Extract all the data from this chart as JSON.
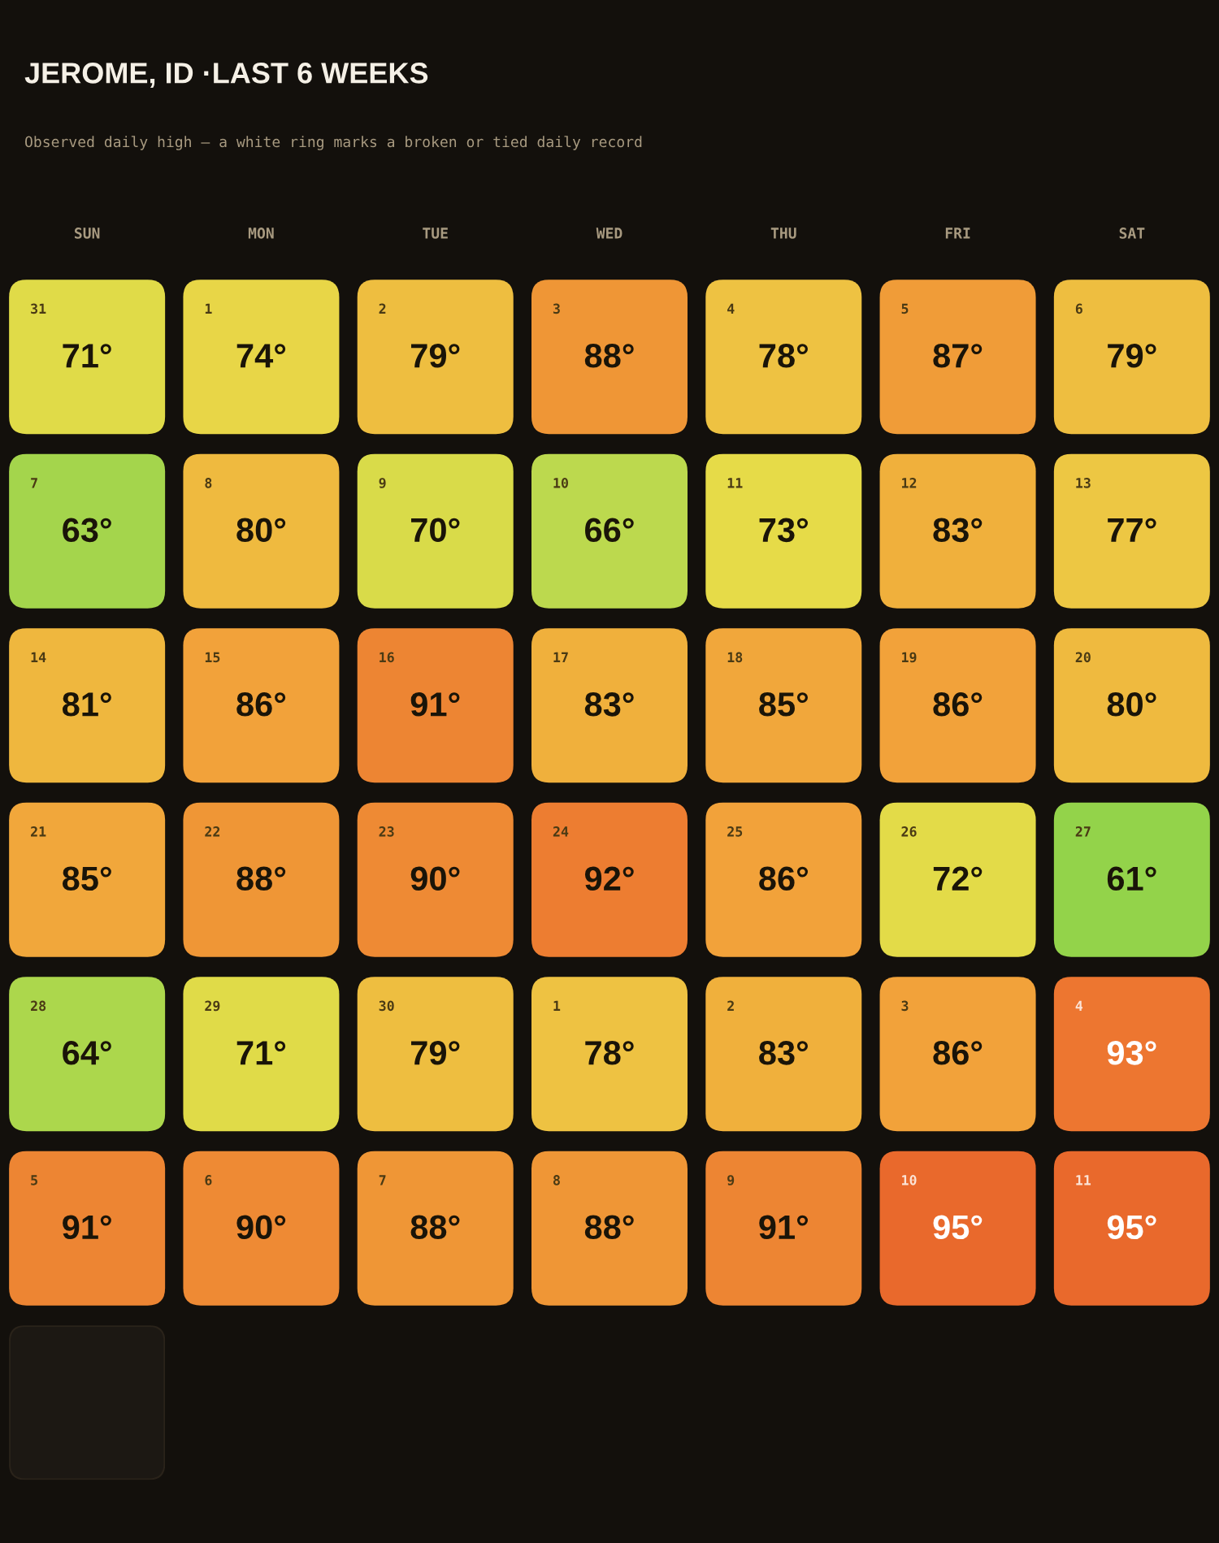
{
  "chart_data": {
    "type": "heatmap",
    "title": "JEROME, ID ·LAST 6 WEEKS",
    "subtitle": "Observed daily high — a white ring marks a broken or tied daily record",
    "categories": [
      "SUN",
      "MON",
      "TUE",
      "WED",
      "THU",
      "FRI",
      "SAT"
    ],
    "y_categories": [
      null,
      null,
      null,
      null,
      null,
      null
    ],
    "cells": [
      [
        71,
        74,
        79,
        88,
        78,
        87,
        79
      ],
      [
        63,
        80,
        70,
        66,
        73,
        83,
        77
      ],
      [
        81,
        86,
        91,
        83,
        85,
        86,
        80
      ],
      [
        85,
        88,
        90,
        92,
        86,
        72,
        61
      ],
      [
        64,
        71,
        79,
        78,
        83,
        86,
        93
      ],
      [
        91,
        90,
        88,
        88,
        91,
        95,
        95
      ]
    ],
    "cell_labels": [
      [
        "71°",
        "74°",
        "79°",
        "88°",
        "78°",
        "87°",
        "79°"
      ],
      [
        "63°",
        "80°",
        "70°",
        "66°",
        "73°",
        "83°",
        "77°"
      ],
      [
        "81°",
        "86°",
        "91°",
        "83°",
        "85°",
        "86°",
        "80°"
      ],
      [
        "85°",
        "88°",
        "90°",
        "92°",
        "86°",
        "72°",
        "61°"
      ],
      [
        "64°",
        "71°",
        "79°",
        "78°",
        "83°",
        "86°",
        "93°"
      ],
      [
        "91°",
        "90°",
        "88°",
        "88°",
        "91°",
        "95°",
        "95°"
      ]
    ],
    "annotations": [
      "31",
      "1",
      "2",
      "3",
      "4",
      "5",
      "6",
      "7",
      "8",
      "9",
      "10",
      "11",
      "12",
      "13",
      "14",
      "15",
      "16",
      "17",
      "18",
      "19",
      "20",
      "21",
      "22",
      "23",
      "24",
      "25",
      "26",
      "27",
      "28",
      "29",
      "30",
      "1",
      "2",
      "3",
      "4",
      "5",
      "6",
      "7",
      "8",
      "9",
      "10",
      "11"
    ]
  }
}
